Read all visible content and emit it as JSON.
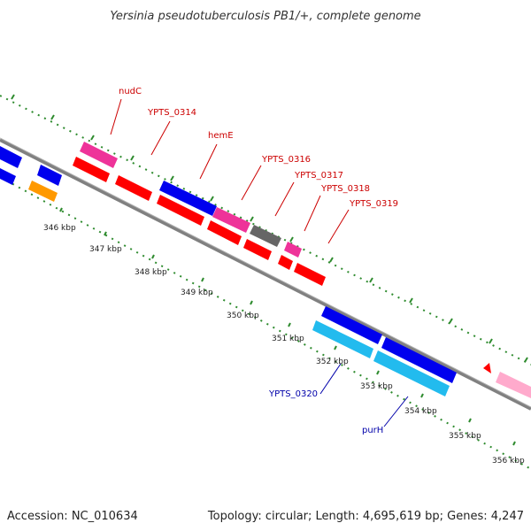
{
  "header": {
    "title": "Yersinia pseudotuberculosis PB1/+, complete genome"
  },
  "footer": {
    "accession": "Accession: NC_010634",
    "summary": "Topology: circular; Length: 4,695,619 bp; Genes: 4,247"
  },
  "colors": {
    "backbone": "#808080",
    "tick": "#2e8b2e",
    "gene_red": "#ff0000",
    "gene_blue": "#0000ee",
    "gene_magenta": "#ee3399",
    "gene_gray": "#666666",
    "gene_cyan": "#22bbee",
    "gene_orange": "#ff9900",
    "gene_pink": "#ffaacc",
    "label_red": "#cc0000",
    "label_blue": "#0000aa"
  },
  "scale": {
    "kbp_labels": [
      "346 kbp",
      "347 kbp",
      "348 kbp",
      "349 kbp",
      "350 kbp",
      "351 kbp",
      "352 kbp",
      "353 kbp",
      "354 kbp",
      "355 kbp",
      "356 kbp"
    ]
  },
  "gene_labels": {
    "outer": [
      "nudC",
      "YPTS_0314",
      "hemE",
      "YPTS_0316",
      "YPTS_0317",
      "YPTS_0318",
      "YPTS_0319"
    ],
    "inner": [
      "YPTS_0320",
      "purH"
    ]
  }
}
